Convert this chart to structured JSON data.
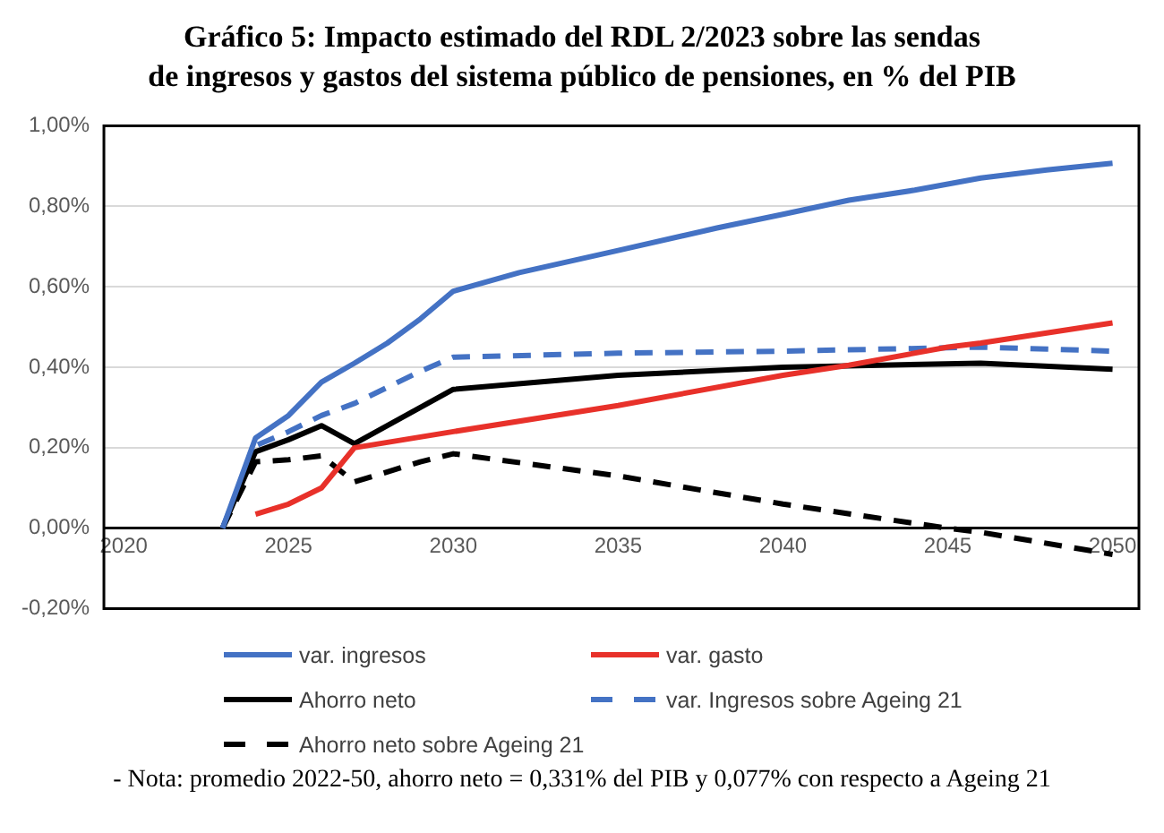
{
  "chart_data": {
    "type": "line",
    "title": "Gráfico 5: Impacto estimado del RDL 2/2023 sobre las sendas\nde ingresos y gastos del sistema público de pensiones, en % del PIB",
    "annotations": [
      "- Nota: promedio 2022-50, ahorro neto = 0,331% del PIB y 0,077% con respecto a Ageing 21"
    ],
    "xlim": [
      2019.4,
      2050.8
    ],
    "xticks": [
      2020,
      2025,
      2030,
      2035,
      2040,
      2045,
      2050
    ],
    "ylim": [
      -0.2,
      1.0
    ],
    "yticks": [
      {
        "value": -0.2,
        "label": "-0,20%"
      },
      {
        "value": 0,
        "label": "0,00%"
      },
      {
        "value": 0.2,
        "label": "0,20%"
      },
      {
        "value": 0.4,
        "label": "0,40%"
      },
      {
        "value": 0.6,
        "label": "0,60%"
      },
      {
        "value": 0.8,
        "label": "0,80%"
      },
      {
        "value": 1.0,
        "label": "1,00%"
      }
    ],
    "grid": "y",
    "legend": "bottom",
    "marker": "none",
    "series": [
      {
        "name": "var. ingresos",
        "color": "#4472c4",
        "line_style": "solid",
        "x": [
          2023,
          2024,
          2025,
          2026,
          2027,
          2028,
          2029,
          2030,
          2032,
          2035,
          2038,
          2040,
          2042,
          2044,
          2046,
          2048,
          2050
        ],
        "values": [
          0,
          0.224,
          0.28,
          0.363,
          0.41,
          0.46,
          0.52,
          0.589,
          0.635,
          0.69,
          0.746,
          0.78,
          0.815,
          0.84,
          0.87,
          0.89,
          0.907
        ]
      },
      {
        "name": "var. gasto",
        "color": "#e8312a",
        "line_style": "solid",
        "x": [
          2024,
          2025,
          2026,
          2027,
          2030,
          2035,
          2040,
          2042,
          2045,
          2046,
          2050
        ],
        "values": [
          0.035,
          0.06,
          0.1,
          0.2,
          0.24,
          0.305,
          0.38,
          0.405,
          0.45,
          0.46,
          0.51
        ]
      },
      {
        "name": "Ahorro neto",
        "color": "#000000",
        "line_style": "solid",
        "x": [
          2023,
          2024,
          2025,
          2026,
          2027,
          2028,
          2029,
          2030,
          2035,
          2040,
          2046,
          2050
        ],
        "values": [
          0,
          0.19,
          0.22,
          0.255,
          0.21,
          0.255,
          0.3,
          0.345,
          0.38,
          0.4,
          0.41,
          0.395
        ]
      },
      {
        "name": "var. Ingresos sobre Ageing 21",
        "color": "#4472c4",
        "line_style": "dashed",
        "x": [
          2023,
          2024,
          2025,
          2026,
          2027,
          2028,
          2029,
          2030,
          2035,
          2040,
          2046,
          2050
        ],
        "values": [
          0,
          0.205,
          0.24,
          0.28,
          0.31,
          0.35,
          0.39,
          0.425,
          0.435,
          0.44,
          0.45,
          0.44
        ]
      },
      {
        "name": "Ahorro neto sobre Ageing 21",
        "color": "#000000",
        "line_style": "dashed",
        "x": [
          2023,
          2024,
          2025,
          2026,
          2027,
          2028,
          2029,
          2030,
          2035,
          2040,
          2045,
          2046,
          2050
        ],
        "values": [
          0,
          0.165,
          0.17,
          0.18,
          0.115,
          0.14,
          0.165,
          0.185,
          0.13,
          0.06,
          0,
          -0.01,
          -0.065
        ]
      }
    ]
  }
}
